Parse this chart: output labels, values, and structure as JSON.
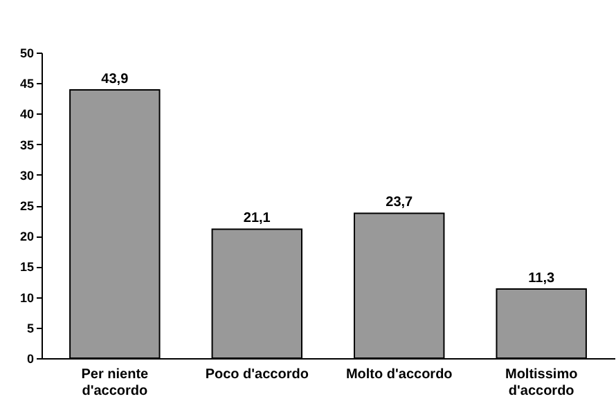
{
  "chart_data": {
    "type": "bar",
    "categories": [
      "Per niente d'accordo",
      "Poco d'accordo",
      "Molto d'accordo",
      "Moltissimo d'accordo"
    ],
    "values": [
      43.9,
      21.1,
      23.7,
      11.3
    ],
    "value_labels": [
      "43,9",
      "21,1",
      "23,7",
      "11,3"
    ],
    "color": "#999999",
    "ylim": [
      0,
      50
    ],
    "yticks": [
      0,
      5,
      10,
      15,
      20,
      25,
      30,
      35,
      40,
      45,
      50
    ],
    "grid": false
  }
}
